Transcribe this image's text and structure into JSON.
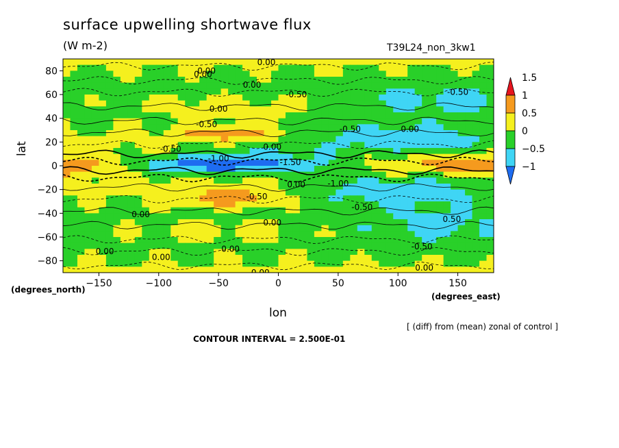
{
  "chart_data": {
    "type": "heatmap",
    "title": "surface upwelling shortwave flux",
    "subtitle": "(W m-2)",
    "run_name": "T39L24_non_3kw1",
    "xlabel": "lon",
    "ylabel": "lat",
    "x_units": "(degrees_east)",
    "y_units": "(degrees_north)",
    "xlim": [
      -180,
      180
    ],
    "ylim": [
      -90,
      90
    ],
    "x_ticks": [
      -150,
      -100,
      -50,
      0,
      50,
      100,
      150
    ],
    "y_ticks": [
      80,
      60,
      40,
      20,
      0,
      -20,
      -40,
      -60,
      -80
    ],
    "colorbar": {
      "levels": [
        -1,
        -0.5,
        0,
        0.5,
        1,
        1.5
      ],
      "tick_labels": [
        "−1",
        "−0.5",
        "0",
        "0.5",
        "1",
        "1.5"
      ],
      "colors": [
        "#1e6cf0",
        "#3fd5f5",
        "#29d029",
        "#f5f01e",
        "#f59a1e",
        "#e6141e"
      ]
    },
    "contour_labels": [
      {
        "text": "0.00",
        "lon": -60,
        "lat": 80
      },
      {
        "text": "0.00",
        "lon": -63,
        "lat": 77
      },
      {
        "text": "0.00",
        "lon": -10,
        "lat": 87
      },
      {
        "text": "0.00",
        "lon": -22,
        "lat": 68
      },
      {
        "text": "-0.50",
        "lon": 15,
        "lat": 60
      },
      {
        "text": "-0.50",
        "lon": 150,
        "lat": 62
      },
      {
        "text": "0.00",
        "lon": -50,
        "lat": 48
      },
      {
        "text": "-0.50",
        "lon": -60,
        "lat": 35
      },
      {
        "text": "-0.50",
        "lon": 60,
        "lat": 31
      },
      {
        "text": "0.00",
        "lon": 110,
        "lat": 31
      },
      {
        "text": "0.00",
        "lon": -5,
        "lat": 16
      },
      {
        "text": "-0.50",
        "lon": -90,
        "lat": 14
      },
      {
        "text": "-1.00",
        "lon": -50,
        "lat": 6
      },
      {
        "text": "-1.50",
        "lon": 10,
        "lat": 3
      },
      {
        "text": "-1.00",
        "lon": 50,
        "lat": -15
      },
      {
        "text": "0.00",
        "lon": 15,
        "lat": -16
      },
      {
        "text": "-0.50",
        "lon": -18,
        "lat": -26
      },
      {
        "text": "-0.50",
        "lon": 70,
        "lat": -35
      },
      {
        "text": "0.00",
        "lon": -115,
        "lat": -41
      },
      {
        "text": "0.00",
        "lon": -5,
        "lat": -48
      },
      {
        "text": "0.50",
        "lon": 145,
        "lat": -45
      },
      {
        "text": "-0.50",
        "lon": 120,
        "lat": -68
      },
      {
        "text": "0.00",
        "lon": -145,
        "lat": -72
      },
      {
        "text": "0.00",
        "lon": -40,
        "lat": -70
      },
      {
        "text": "0.00",
        "lon": -98,
        "lat": -77
      },
      {
        "text": "0.00",
        "lon": 122,
        "lat": -86
      },
      {
        "text": "0.00",
        "lon": -15,
        "lat": -90
      }
    ],
    "annotation": "[ (diff) from (mean) zonal of control ]",
    "contour_interval_text": "CONTOUR INTERVAL = 2.500E-01"
  }
}
